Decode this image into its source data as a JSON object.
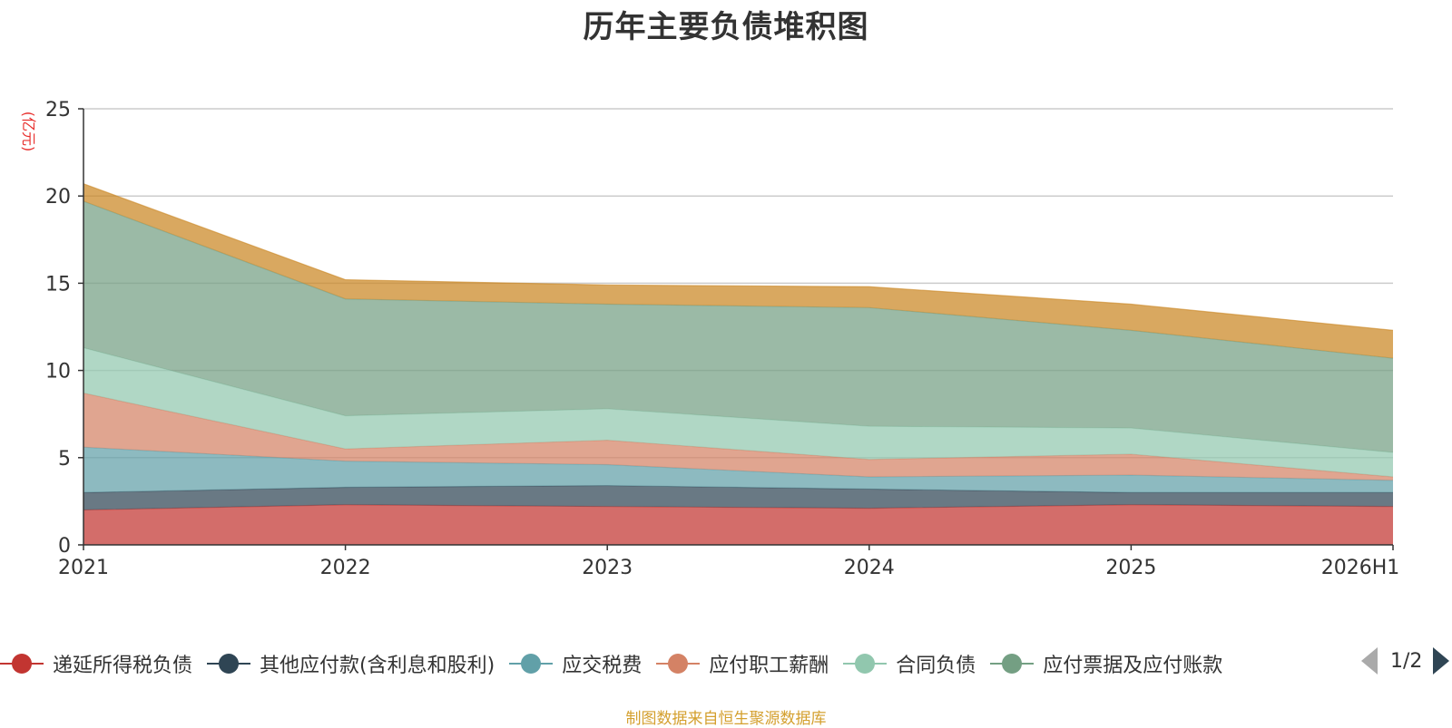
{
  "chart_data": {
    "type": "area",
    "stacked": true,
    "title": "历年主要负债堆积图",
    "unit_label": "(亿元)",
    "categories": [
      "2021",
      "2022",
      "2023",
      "2024",
      "2025",
      "2026H1"
    ],
    "y_ticks": [
      "0",
      "5",
      "10",
      "15",
      "20",
      "25"
    ],
    "ylim": [
      0,
      25
    ],
    "grid": true,
    "series": [
      {
        "name": "递延所得税负债",
        "color": "#c23531",
        "values": [
          2.0,
          2.3,
          2.2,
          2.1,
          2.3,
          2.2
        ]
      },
      {
        "name": "其他应付款(含利息和股利)",
        "color": "#2f4554",
        "values": [
          1.0,
          1.0,
          1.2,
          1.1,
          0.7,
          0.8
        ]
      },
      {
        "name": "应交税费",
        "color": "#61a0a8",
        "values": [
          2.6,
          1.5,
          1.2,
          0.7,
          1.0,
          0.7
        ]
      },
      {
        "name": "应付职工薪酬",
        "color": "#d48265",
        "values": [
          3.1,
          0.7,
          1.4,
          1.0,
          1.2,
          0.2
        ]
      },
      {
        "name": "合同负债",
        "color": "#91c7ae",
        "values": [
          2.6,
          1.9,
          1.8,
          1.9,
          1.5,
          1.4
        ]
      },
      {
        "name": "应付票据及应付账款",
        "color": "#749f83",
        "values": [
          8.4,
          6.7,
          6.0,
          6.8,
          5.6,
          5.4
        ]
      },
      {
        "name": "",
        "color": "#ca8622",
        "values": [
          1.0,
          1.1,
          1.1,
          1.2,
          1.5,
          1.6
        ]
      }
    ]
  },
  "legend": {
    "page": "1/2"
  },
  "source": "制图数据来自恒生聚源数据库"
}
